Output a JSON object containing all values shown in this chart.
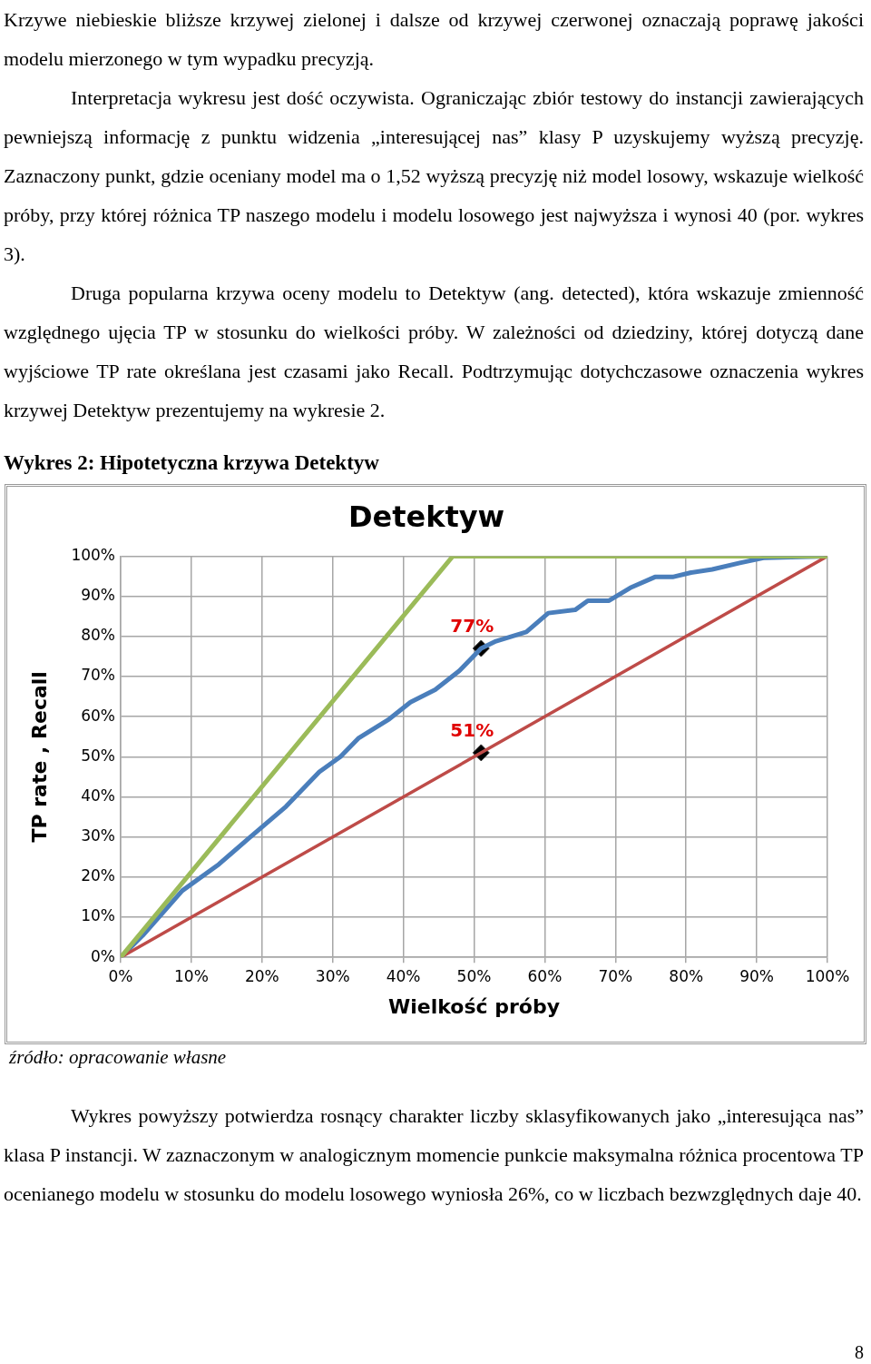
{
  "chart_data": {
    "type": "line",
    "title": "Detektyw",
    "subtitle": "Wykres 2: Hipotetyczna krzywa Detektyw",
    "xlabel": "Wielkość próby",
    "ylabel": "TP rate , Recall",
    "xlim": [
      0,
      100
    ],
    "ylim": [
      0,
      100
    ],
    "xticks": [
      {
        "value": 0,
        "label": "0%"
      },
      {
        "value": 10,
        "label": "10%"
      },
      {
        "value": 20,
        "label": "20%"
      },
      {
        "value": 30,
        "label": "30%"
      },
      {
        "value": 40,
        "label": "40%"
      },
      {
        "value": 50,
        "label": "50%"
      },
      {
        "value": 60,
        "label": "60%"
      },
      {
        "value": 70,
        "label": "70%"
      },
      {
        "value": 80,
        "label": "80%"
      },
      {
        "value": 90,
        "label": "90%"
      },
      {
        "value": 100,
        "label": "100%"
      }
    ],
    "yticks": [
      {
        "value": 0,
        "label": "0%"
      },
      {
        "value": 10,
        "label": "10%"
      },
      {
        "value": 20,
        "label": "20%"
      },
      {
        "value": 30,
        "label": "30%"
      },
      {
        "value": 40,
        "label": "40%"
      },
      {
        "value": 50,
        "label": "50%"
      },
      {
        "value": 60,
        "label": "60%"
      },
      {
        "value": 70,
        "label": "70%"
      },
      {
        "value": 80,
        "label": "80%"
      },
      {
        "value": 90,
        "label": "90%"
      },
      {
        "value": 100,
        "label": "100%"
      }
    ],
    "grid": true,
    "legend": false,
    "marker": "none",
    "series": [
      {
        "color": "#9bbb59",
        "x": [
          0,
          47,
          100
        ],
        "values": [
          0,
          100,
          100
        ]
      },
      {
        "color": "#be4b48",
        "x": [
          0,
          100
        ],
        "values": [
          0,
          100
        ]
      },
      {
        "color": "#4a7ebb",
        "x": [
          0,
          3.1,
          8.7,
          13.9,
          18.2,
          23.4,
          28.1,
          31.1,
          33.7,
          38.0,
          41.0,
          44.5,
          47.9,
          51,
          53.1,
          57.4,
          60.5,
          64.3,
          66.1,
          69.1,
          72.1,
          75.6,
          78.1,
          80.7,
          83.7,
          87.6,
          91.1,
          100
        ],
        "values": [
          0,
          5.4,
          16.6,
          23.2,
          29.8,
          37.6,
          46.2,
          50.0,
          54.7,
          59.4,
          63.6,
          66.7,
          71.4,
          77,
          78.8,
          81.1,
          85.8,
          86.6,
          88.9,
          88.9,
          92.1,
          94.8,
          94.8,
          95.9,
          96.7,
          98.3,
          99.6,
          100
        ]
      },
      {
        "type": "scatter",
        "marker": "diamond",
        "color": "#000000",
        "x": [
          51,
          51
        ],
        "values": [
          77,
          51
        ],
        "value_labels": [
          "77%",
          "51%"
        ]
      }
    ],
    "annotations": [
      "Krzywe niebieskie bliższe krzywej zielonej i dalsze od krzywej czerwonej oznaczają poprawę jakości modelu mierzonego w tym wypadku precyzją.",
      "Interpretacja wykresu jest dość oczywista. Ograniczając zbiór testowy do instancji zawierających pewniejszą informację z punktu widzenia „interesującej nas” klasy P uzyskujemy wyższą precyzję. Zaznaczony punkt, gdzie oceniany model ma o 1,52 wyższą precyzję niż model losowy, wskazuje wielkość próby, przy której różnica TP naszego modelu i modelu losowego jest najwyższa i wynosi 40 (por. wykres 3).",
      "Druga popularna krzywa oceny modelu to Detektyw (ang. detected), która wskazuje zmienność względnego ujęcia TP w stosunku do wielkości próby. W zależności od dziedziny, której dotyczą dane wyjściowe TP rate określana jest czasami jako Recall. Podtrzymując dotychczasowe oznaczenia wykres krzywej Detektyw prezentujemy na wykresie 2.",
      "źródło: opracowanie własne",
      "Wykres powyższy potwierdza rosnący charakter liczby sklasyfikowanych jako „interesująca nas” klasa P instancji. W zaznaczonym w analogicznym momencie punkcie maksymalna różnica procentowa TP ocenianego modelu w stosunku do modelu losowego wyniosła 26%, co w liczbach bezwzględnych daje 40.",
      "8"
    ]
  }
}
